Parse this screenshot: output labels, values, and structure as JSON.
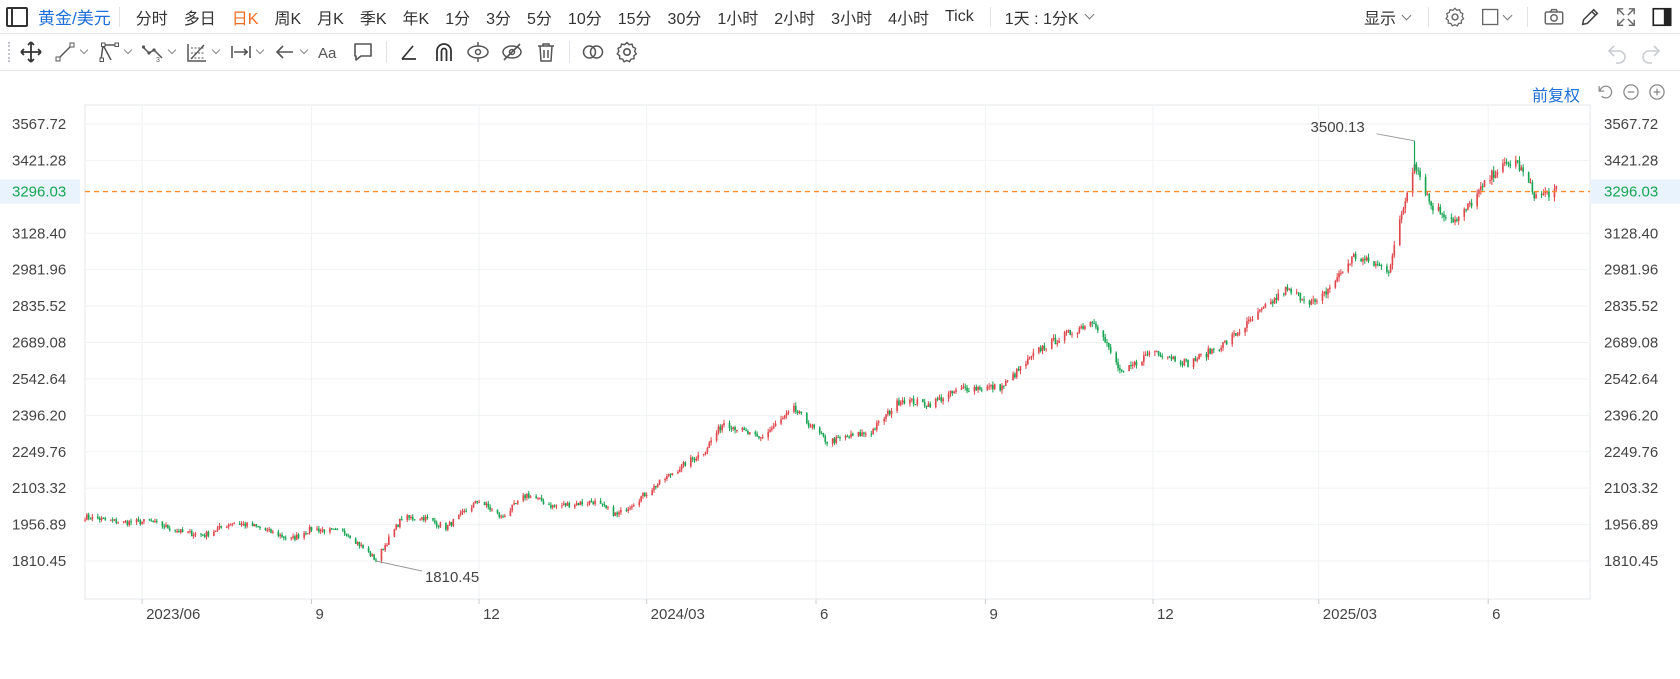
{
  "toolbar": {
    "symbol": "黄金/美元",
    "periods": [
      "分时",
      "多日",
      "日K",
      "周K",
      "月K",
      "季K",
      "年K",
      "1分",
      "3分",
      "5分",
      "10分",
      "15分",
      "30分",
      "1小时",
      "2小时",
      "3小时",
      "4小时",
      "Tick"
    ],
    "active_period": "日K",
    "range_dropdown": "1天 : 1分K",
    "display_dropdown": "显示",
    "right_icons": [
      "settings-icon",
      "layout-icon",
      "camera-icon",
      "pencil-icon",
      "fullscreen-icon",
      "panel-icon"
    ]
  },
  "drawing_tools": [
    "move-icon",
    "line-icon",
    "channel-icon",
    "wave-icon",
    "fib-icon",
    "measure-icon",
    "arrow-icon",
    "text-icon",
    "comment-icon",
    "angle-icon",
    "magnet-icon",
    "eye-lock-icon",
    "hide-icon",
    "trash-icon",
    "compare-icon",
    "tool-settings-icon"
  ],
  "chart_header": {
    "adjust_label": "前复权"
  },
  "chart_data": {
    "type": "candlestick",
    "title": "",
    "y_ticks": [
      3567.72,
      3421.28,
      3296.03,
      3128.4,
      2981.96,
      2835.52,
      2689.08,
      2542.64,
      2396.2,
      2249.76,
      2103.32,
      1956.89,
      1810.45
    ],
    "y_tick_labels": [
      "3567.72",
      "3421.28",
      "3296.03",
      "3128.40",
      "2981.96",
      "2835.52",
      "2689.08",
      "2542.64",
      "2396.20",
      "2249.76",
      "2103.32",
      "1956.89",
      "1810.45"
    ],
    "x_ticks": [
      "2023/06",
      "9",
      "12",
      "2024/03",
      "6",
      "9",
      "12",
      "2025/03",
      "6"
    ],
    "x_tick_dates": [
      "2023-06-01",
      "2023-09-01",
      "2023-12-01",
      "2024-03-01",
      "2024-06-01",
      "2024-09-01",
      "2024-12-01",
      "2025-03-01",
      "2025-06-01"
    ],
    "current_price": 3296.03,
    "current_price_label": "3296.03",
    "max_marker": {
      "value": 3500.13,
      "label": "3500.13",
      "date": "2025-04-22"
    },
    "min_marker": {
      "value": 1810.45,
      "label": "1810.45",
      "date": "2023-10-06"
    },
    "price_path": [
      [
        "2023-05-01",
        1988
      ],
      [
        "2023-05-22",
        1965
      ],
      [
        "2023-06-05",
        1970
      ],
      [
        "2023-06-23",
        1925
      ],
      [
        "2023-07-05",
        1915
      ],
      [
        "2023-07-20",
        1965
      ],
      [
        "2023-08-01",
        1950
      ],
      [
        "2023-08-21",
        1898
      ],
      [
        "2023-09-01",
        1940
      ],
      [
        "2023-09-20",
        1925
      ],
      [
        "2023-10-06",
        1815
      ],
      [
        "2023-10-20",
        1982
      ],
      [
        "2023-11-01",
        1985
      ],
      [
        "2023-11-13",
        1945
      ],
      [
        "2023-12-01",
        2055
      ],
      [
        "2023-12-13",
        1985
      ],
      [
        "2023-12-27",
        2078
      ],
      [
        "2024-01-10",
        2030
      ],
      [
        "2024-02-01",
        2050
      ],
      [
        "2024-02-14",
        1995
      ],
      [
        "2024-03-01",
        2085
      ],
      [
        "2024-03-15",
        2165
      ],
      [
        "2024-04-01",
        2250
      ],
      [
        "2024-04-12",
        2370
      ],
      [
        "2024-05-01",
        2300
      ],
      [
        "2024-05-20",
        2420
      ],
      [
        "2024-06-07",
        2290
      ],
      [
        "2024-07-01",
        2330
      ],
      [
        "2024-07-17",
        2460
      ],
      [
        "2024-08-01",
        2440
      ],
      [
        "2024-08-20",
        2505
      ],
      [
        "2024-09-10",
        2510
      ],
      [
        "2024-10-01",
        2665
      ],
      [
        "2024-10-30",
        2780
      ],
      [
        "2024-11-14",
        2560
      ],
      [
        "2024-12-01",
        2660
      ],
      [
        "2024-12-20",
        2605
      ],
      [
        "2025-01-10",
        2690
      ],
      [
        "2025-02-11",
        2900
      ],
      [
        "2025-02-28",
        2845
      ],
      [
        "2025-03-20",
        3035
      ],
      [
        "2025-04-08",
        2982
      ],
      [
        "2025-04-22",
        3420
      ],
      [
        "2025-05-01",
        3240
      ],
      [
        "2025-05-15",
        3175
      ],
      [
        "2025-06-05",
        3380
      ],
      [
        "2025-06-16",
        3420
      ],
      [
        "2025-06-27",
        3275
      ],
      [
        "2025-07-08",
        3300
      ]
    ],
    "up_color": "#e0474c",
    "down_color": "#17a552",
    "price_line_color": "#ff8a2b",
    "grid": true
  }
}
